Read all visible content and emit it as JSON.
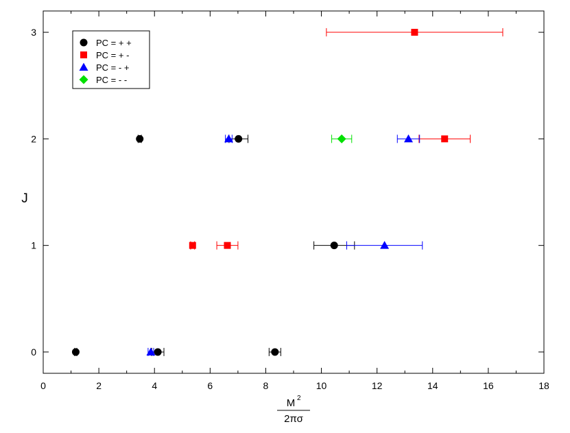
{
  "chart_data": {
    "type": "scatter",
    "xlabel": {
      "numerator": "M",
      "superscript": "2",
      "denominator": "2πσ"
    },
    "ylabel": "J",
    "xlim": [
      0,
      18
    ],
    "ylim": [
      -0.2,
      3.2
    ],
    "xticks": [
      0,
      2,
      4,
      6,
      8,
      10,
      12,
      14,
      16,
      18
    ],
    "yticks": [
      0,
      1,
      2,
      3
    ],
    "grid": false,
    "legend_position": "top-left",
    "series": [
      {
        "name": "PC = + +",
        "marker": "circle",
        "color": "#000000",
        "points": [
          {
            "x": 1.17,
            "y": 0,
            "err": 0.04
          },
          {
            "x": 4.12,
            "y": 0,
            "err": 0.22
          },
          {
            "x": 8.33,
            "y": 0,
            "err": 0.21
          },
          {
            "x": 10.46,
            "y": 1,
            "err": 0.73
          },
          {
            "x": 3.47,
            "y": 2,
            "err": 0.06
          },
          {
            "x": 7.02,
            "y": 2,
            "err": 0.34
          }
        ]
      },
      {
        "name": "PC = + -",
        "marker": "square",
        "color": "#ff0000",
        "points": [
          {
            "x": 5.37,
            "y": 1,
            "err": 0.07
          },
          {
            "x": 6.62,
            "y": 1,
            "err": 0.38
          },
          {
            "x": 14.43,
            "y": 2,
            "err": 0.92
          },
          {
            "x": 13.35,
            "y": 3,
            "err": 3.17
          }
        ]
      },
      {
        "name": "PC = - +",
        "marker": "triangle",
        "color": "#0000ff",
        "points": [
          {
            "x": 3.87,
            "y": 0,
            "err": 0.1
          },
          {
            "x": 12.27,
            "y": 1,
            "err": 1.36
          },
          {
            "x": 6.67,
            "y": 2,
            "err": 0.12
          },
          {
            "x": 13.13,
            "y": 2,
            "err": 0.4
          }
        ]
      },
      {
        "name": "PC = - -",
        "marker": "diamond",
        "color": "#00e000",
        "points": [
          {
            "x": 10.73,
            "y": 2,
            "err": 0.36
          }
        ]
      }
    ]
  }
}
